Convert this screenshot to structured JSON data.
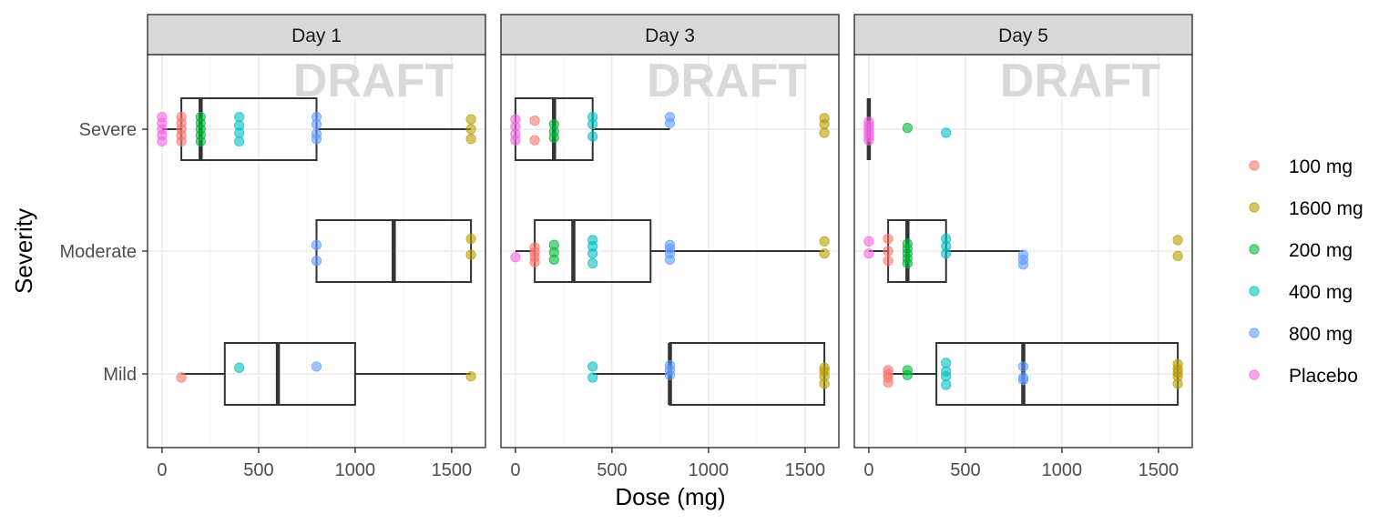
{
  "chart_data": {
    "type": "boxplot",
    "facet_by": "day",
    "panels": [
      "Day 1",
      "Day 3",
      "Day 5"
    ],
    "xlabel": "Dose (mg)",
    "ylabel": "Severity",
    "xlim": [
      -75,
      1675
    ],
    "xticks": [
      0,
      500,
      1000,
      1500
    ],
    "categories": [
      "Mild",
      "Moderate",
      "Severe"
    ],
    "watermark": "DRAFT",
    "grid": true,
    "legend_position": "right",
    "legend": [
      {
        "label": "100 mg",
        "color": "#F8766D"
      },
      {
        "label": "1600 mg",
        "color": "#B79F00"
      },
      {
        "label": "200 mg",
        "color": "#00BA38"
      },
      {
        "label": "400 mg",
        "color": "#00BFC4"
      },
      {
        "label": "800 mg",
        "color": "#619CFF"
      },
      {
        "label": "Placebo",
        "color": "#F564E3"
      }
    ],
    "boxes": [
      {
        "panel": "Day 1",
        "category": "Severe",
        "q1": 100,
        "median": 200,
        "q3": 800,
        "whisker_low": 0,
        "whisker_high": 1600
      },
      {
        "panel": "Day 1",
        "category": "Moderate",
        "q1": 800,
        "median": 1200,
        "q3": 1600,
        "whisker_low": 800,
        "whisker_high": 1600
      },
      {
        "panel": "Day 1",
        "category": "Mild",
        "q1": 325,
        "median": 600,
        "q3": 1000,
        "whisker_low": 100,
        "whisker_high": 1600
      },
      {
        "panel": "Day 3",
        "category": "Severe",
        "q1": 0,
        "median": 200,
        "q3": 400,
        "whisker_low": 0,
        "whisker_high": 800
      },
      {
        "panel": "Day 3",
        "category": "Moderate",
        "q1": 100,
        "median": 300,
        "q3": 700,
        "whisker_low": 0,
        "whisker_high": 1600
      },
      {
        "panel": "Day 3",
        "category": "Mild",
        "q1": 800,
        "median": 800,
        "q3": 1600,
        "whisker_low": 400,
        "whisker_high": 1600
      },
      {
        "panel": "Day 5",
        "category": "Severe",
        "q1": 0,
        "median": 0,
        "q3": 0,
        "whisker_low": 0,
        "whisker_high": 0
      },
      {
        "panel": "Day 5",
        "category": "Moderate",
        "q1": 100,
        "median": 200,
        "q3": 400,
        "whisker_low": 0,
        "whisker_high": 800
      },
      {
        "panel": "Day 5",
        "category": "Mild",
        "q1": 350,
        "median": 800,
        "q3": 1600,
        "whisker_low": 100,
        "whisker_high": 1600
      }
    ],
    "points": [
      {
        "panel": "Day 1",
        "category": "Severe",
        "group": "Placebo",
        "x": 0,
        "jitter": [
          -0.1,
          -0.05,
          0,
          0.05,
          0.1
        ]
      },
      {
        "panel": "Day 1",
        "category": "Severe",
        "group": "100 mg",
        "x": 100,
        "jitter": [
          -0.1,
          -0.05,
          0,
          0.05,
          0.1
        ]
      },
      {
        "panel": "Day 1",
        "category": "Severe",
        "group": "200 mg",
        "x": 200,
        "jitter": [
          -0.1,
          -0.05,
          0,
          0.05,
          0.1
        ]
      },
      {
        "panel": "Day 1",
        "category": "Severe",
        "group": "400 mg",
        "x": 400,
        "jitter": [
          -0.1,
          -0.03,
          0.03,
          0.1
        ]
      },
      {
        "panel": "Day 1",
        "category": "Severe",
        "group": "800 mg",
        "x": 800,
        "jitter": [
          -0.1,
          -0.04,
          0.04,
          0.08
        ]
      },
      {
        "panel": "Day 1",
        "category": "Severe",
        "group": "1600 mg",
        "x": 1600,
        "jitter": [
          -0.08,
          0,
          0.08
        ]
      },
      {
        "panel": "Day 1",
        "category": "Moderate",
        "group": "800 mg",
        "x": 800,
        "jitter": [
          -0.05,
          0.08
        ]
      },
      {
        "panel": "Day 1",
        "category": "Moderate",
        "group": "1600 mg",
        "x": 1600,
        "jitter": [
          -0.1,
          0.03
        ]
      },
      {
        "panel": "Day 1",
        "category": "Mild",
        "group": "100 mg",
        "x": 100,
        "jitter": [
          0.03
        ]
      },
      {
        "panel": "Day 1",
        "category": "Mild",
        "group": "400 mg",
        "x": 400,
        "jitter": [
          -0.05
        ]
      },
      {
        "panel": "Day 1",
        "category": "Mild",
        "group": "800 mg",
        "x": 800,
        "jitter": [
          -0.06
        ]
      },
      {
        "panel": "Day 1",
        "category": "Mild",
        "group": "1600 mg",
        "x": 1600,
        "jitter": [
          0.02
        ]
      },
      {
        "panel": "Day 3",
        "category": "Severe",
        "group": "Placebo",
        "x": 0,
        "jitter": [
          -0.08,
          -0.02,
          0.04,
          0.09
        ]
      },
      {
        "panel": "Day 3",
        "category": "Severe",
        "group": "100 mg",
        "x": 100,
        "jitter": [
          -0.07,
          0.09
        ]
      },
      {
        "panel": "Day 3",
        "category": "Severe",
        "group": "200 mg",
        "x": 200,
        "jitter": [
          -0.04,
          0.02,
          0.07
        ]
      },
      {
        "panel": "Day 3",
        "category": "Severe",
        "group": "400 mg",
        "x": 400,
        "jitter": [
          -0.1,
          -0.04,
          0.06
        ]
      },
      {
        "panel": "Day 3",
        "category": "Severe",
        "group": "800 mg",
        "x": 800,
        "jitter": [
          -0.1,
          -0.05
        ]
      },
      {
        "panel": "Day 3",
        "category": "Severe",
        "group": "1600 mg",
        "x": 1600,
        "jitter": [
          -0.09,
          -0.04,
          0.03
        ]
      },
      {
        "panel": "Day 3",
        "category": "Moderate",
        "group": "Placebo",
        "x": 0,
        "jitter": [
          0.05
        ]
      },
      {
        "panel": "Day 3",
        "category": "Moderate",
        "group": "100 mg",
        "x": 100,
        "jitter": [
          -0.03,
          0.01,
          0.05,
          0.09
        ]
      },
      {
        "panel": "Day 3",
        "category": "Moderate",
        "group": "200 mg",
        "x": 200,
        "jitter": [
          -0.05,
          0.01,
          0.07
        ]
      },
      {
        "panel": "Day 3",
        "category": "Moderate",
        "group": "400 mg",
        "x": 400,
        "jitter": [
          -0.09,
          -0.04,
          0.02,
          0.1
        ]
      },
      {
        "panel": "Day 3",
        "category": "Moderate",
        "group": "800 mg",
        "x": 800,
        "jitter": [
          -0.05,
          -0.02,
          0.02,
          0.07
        ]
      },
      {
        "panel": "Day 3",
        "category": "Moderate",
        "group": "1600 mg",
        "x": 1600,
        "jitter": [
          -0.08,
          0.02
        ]
      },
      {
        "panel": "Day 3",
        "category": "Mild",
        "group": "400 mg",
        "x": 400,
        "jitter": [
          -0.06,
          0.03
        ]
      },
      {
        "panel": "Day 3",
        "category": "Mild",
        "group": "800 mg",
        "x": 800,
        "jitter": [
          -0.07,
          -0.03,
          0.01
        ]
      },
      {
        "panel": "Day 3",
        "category": "Mild",
        "group": "1600 mg",
        "x": 1600,
        "jitter": [
          -0.05,
          -0.02,
          0.02,
          0.08
        ]
      },
      {
        "panel": "Day 5",
        "category": "Severe",
        "group": "Placebo",
        "x": 0,
        "jitter": [
          -0.06,
          -0.03,
          0,
          0.03,
          0.06,
          0.09
        ]
      },
      {
        "panel": "Day 5",
        "category": "Severe",
        "group": "200 mg",
        "x": 200,
        "jitter": [
          -0.01
        ]
      },
      {
        "panel": "Day 5",
        "category": "Severe",
        "group": "400 mg",
        "x": 400,
        "jitter": [
          0.03
        ]
      },
      {
        "panel": "Day 5",
        "category": "Moderate",
        "group": "Placebo",
        "x": 0,
        "jitter": [
          -0.08,
          0.02
        ]
      },
      {
        "panel": "Day 5",
        "category": "Moderate",
        "group": "100 mg",
        "x": 100,
        "jitter": [
          -0.1,
          0,
          0.08
        ]
      },
      {
        "panel": "Day 5",
        "category": "Moderate",
        "group": "200 mg",
        "x": 200,
        "jitter": [
          -0.06,
          -0.02,
          0.02,
          0.06,
          0.1
        ]
      },
      {
        "panel": "Day 5",
        "category": "Moderate",
        "group": "400 mg",
        "x": 400,
        "jitter": [
          -0.1,
          -0.04,
          0.02
        ]
      },
      {
        "panel": "Day 5",
        "category": "Moderate",
        "group": "800 mg",
        "x": 800,
        "jitter": [
          0.03,
          0.07,
          0.11
        ]
      },
      {
        "panel": "Day 5",
        "category": "Moderate",
        "group": "1600 mg",
        "x": 1600,
        "jitter": [
          -0.09,
          0.04
        ]
      },
      {
        "panel": "Day 5",
        "category": "Mild",
        "group": "100 mg",
        "x": 100,
        "jitter": [
          -0.03,
          0,
          0.03,
          0.07
        ]
      },
      {
        "panel": "Day 5",
        "category": "Mild",
        "group": "200 mg",
        "x": 200,
        "jitter": [
          -0.03,
          0.01
        ]
      },
      {
        "panel": "Day 5",
        "category": "Mild",
        "group": "400 mg",
        "x": 400,
        "jitter": [
          -0.09,
          -0.02,
          0.02,
          0.09
        ]
      },
      {
        "panel": "Day 5",
        "category": "Mild",
        "group": "800 mg",
        "x": 800,
        "jitter": [
          -0.06,
          0.03,
          0.05
        ]
      },
      {
        "panel": "Day 5",
        "category": "Mild",
        "group": "1600 mg",
        "x": 1600,
        "jitter": [
          -0.08,
          -0.04,
          -0.01,
          0.02,
          0.08
        ]
      }
    ]
  }
}
